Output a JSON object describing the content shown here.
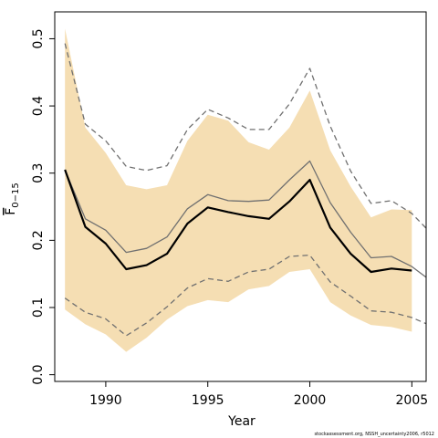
{
  "chart_data": {
    "type": "line",
    "xlabel": "Year",
    "ylabel_main": "F",
    "ylabel_sub": "0−15",
    "footnote": "stockassessment.org, NSSH_uncertainty2006, r5012",
    "xlim": [
      1987.5,
      2005.7
    ],
    "ylim": [
      -0.01,
      0.54
    ],
    "x_ticks": [
      1990,
      1995,
      2000,
      2005
    ],
    "y_ticks": [
      0.0,
      0.1,
      0.2,
      0.3,
      0.4,
      0.5
    ],
    "y_tick_labels": [
      "0.0",
      "0.1",
      "0.2",
      "0.3",
      "0.4",
      "0.5"
    ],
    "band_color": "#F5DEB3",
    "years": [
      1988,
      1989,
      1990,
      1991,
      1992,
      1993,
      1994,
      1995,
      1996,
      1997,
      1998,
      1999,
      2000,
      2001,
      2002,
      2003,
      2004,
      2005
    ],
    "series": [
      {
        "role": "estimate",
        "color": "#000000",
        "style": "solid-bold",
        "values": [
          0.305,
          0.22,
          0.195,
          0.157,
          0.163,
          0.18,
          0.225,
          0.249,
          0.242,
          0.236,
          0.232,
          0.258,
          0.29,
          0.219,
          0.18,
          0.153,
          0.158,
          0.155
        ]
      },
      {
        "role": "band-lower",
        "values": [
          0.097,
          0.075,
          0.06,
          0.034,
          0.055,
          0.082,
          0.102,
          0.111,
          0.108,
          0.127,
          0.132,
          0.153,
          0.157,
          0.108,
          0.088,
          0.074,
          0.071,
          0.064
        ]
      },
      {
        "role": "band-upper",
        "values": [
          0.515,
          0.368,
          0.33,
          0.282,
          0.276,
          0.282,
          0.348,
          0.387,
          0.378,
          0.346,
          0.335,
          0.368,
          0.423,
          0.334,
          0.28,
          0.234,
          0.246,
          0.245
        ]
      },
      {
        "role": "median",
        "color": "#707070",
        "style": "solid-thin",
        "values": [
          0.305,
          0.232,
          0.215,
          0.182,
          0.188,
          0.205,
          0.247,
          0.268,
          0.259,
          0.258,
          0.26,
          0.29,
          0.318,
          0.256,
          0.212,
          0.174,
          0.176,
          0.161
        ],
        "extra_end": [
          2005.7,
          0.145
        ]
      },
      {
        "role": "upper-dashed",
        "color": "#707070",
        "style": "dashed",
        "values": [
          0.493,
          0.373,
          0.348,
          0.31,
          0.304,
          0.311,
          0.365,
          0.395,
          0.382,
          0.365,
          0.365,
          0.403,
          0.456,
          0.37,
          0.303,
          0.255,
          0.259,
          0.24
        ],
        "extra_end": [
          2005.7,
          0.218
        ]
      },
      {
        "role": "lower-dashed",
        "color": "#707070",
        "style": "dashed",
        "values": [
          0.114,
          0.093,
          0.083,
          0.058,
          0.077,
          0.101,
          0.129,
          0.143,
          0.139,
          0.153,
          0.157,
          0.176,
          0.178,
          0.138,
          0.117,
          0.095,
          0.093,
          0.085
        ],
        "extra_end": [
          2005.7,
          0.076
        ]
      }
    ]
  }
}
